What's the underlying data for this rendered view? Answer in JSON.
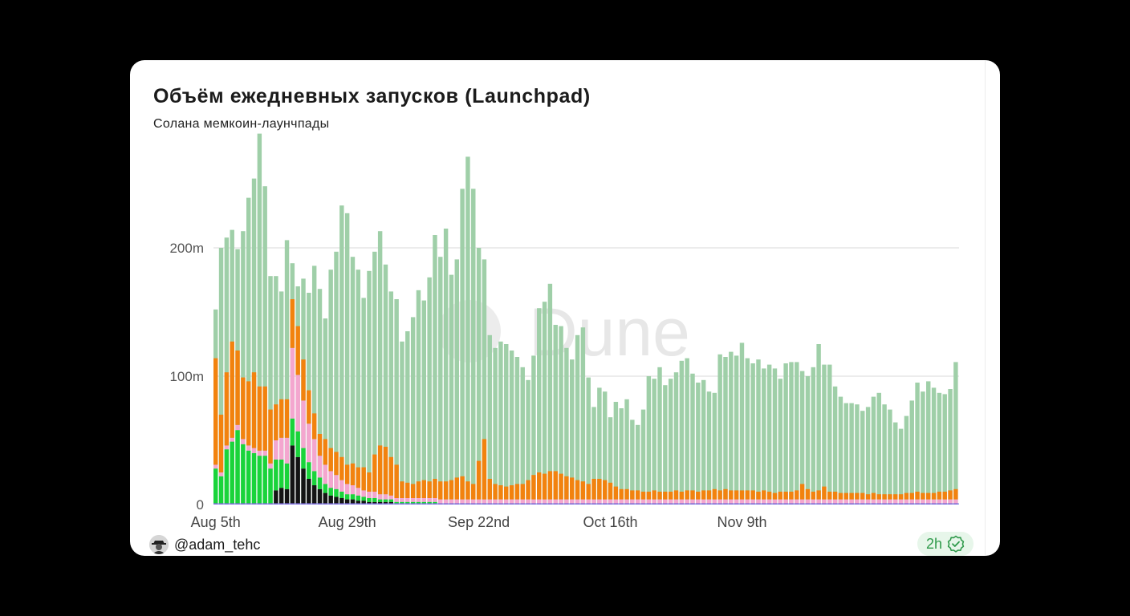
{
  "title": "Объём ежедневных запусков (Launchpad)",
  "subtitle": "Солана мемкоин-лаунчпады",
  "watermark": "Dune",
  "author": "@adam_tehc",
  "badge": "2h",
  "icons": {
    "avatar": "user-avatar",
    "verified": "verified-check-icon",
    "watermark": "dune-logo-icon"
  },
  "colors": {
    "total": "#9fcfa8",
    "orange": "#f2820e",
    "pink": "#f4a6cf",
    "green": "#19d43a",
    "black": "#141414",
    "magenta": "#e353e3",
    "blue": "#4f6dd8",
    "grid": "#e6e6e6"
  },
  "chart_data": {
    "type": "bar",
    "x_start": "Aug 5th",
    "x_ticks": [
      "Aug 5th",
      "Aug 29th",
      "Sep 22nd",
      "Oct 16th",
      "Nov 9th"
    ],
    "y_ticks": [
      "0",
      "100m",
      "200m"
    ],
    "ylim": [
      0,
      290
    ],
    "unit": "m",
    "grid": true,
    "total": [
      152,
      200,
      208,
      214,
      199,
      213,
      239,
      254,
      289,
      248,
      178,
      178,
      166,
      206,
      188,
      170,
      176,
      165,
      186,
      168,
      145,
      183,
      197,
      233,
      227,
      193,
      183,
      161,
      182,
      197,
      213,
      187,
      166,
      160,
      127,
      135,
      146,
      167,
      159,
      177,
      210,
      193,
      215,
      179,
      191,
      246,
      271,
      246,
      200,
      191,
      132,
      122,
      127,
      125,
      120,
      115,
      107,
      97,
      116,
      153,
      158,
      172,
      140,
      139,
      122,
      113,
      132,
      138,
      99,
      76,
      91,
      88,
      68,
      80,
      75,
      82,
      66,
      62,
      74,
      100,
      98,
      107,
      93,
      98,
      103,
      112,
      114,
      102,
      95,
      97,
      88,
      87,
      117,
      115,
      119,
      116,
      126,
      114,
      110,
      113,
      106,
      109,
      106,
      98,
      110,
      111,
      111,
      104,
      100,
      107,
      125,
      109,
      109,
      92,
      84,
      79,
      79,
      78,
      73,
      76,
      84,
      87,
      78,
      74,
      64,
      59,
      69,
      81,
      95,
      88,
      96,
      91,
      87,
      86,
      90,
      111
    ],
    "series": [
      {
        "values": [
          83,
          45,
          57,
          75,
          58,
          48,
          50,
          59,
          50,
          50,
          42,
          28,
          30,
          30,
          38,
          38,
          32,
          26,
          20,
          17,
          20,
          18,
          18,
          18,
          15,
          17,
          16,
          18,
          15,
          29,
          38,
          37,
          30,
          26,
          13,
          12,
          11,
          13,
          14,
          13,
          15,
          14,
          14,
          15,
          17,
          18,
          14,
          12,
          30,
          47,
          16,
          12,
          11,
          10,
          11,
          12,
          12,
          15,
          19,
          21,
          20,
          22,
          22,
          20,
          18,
          17,
          15,
          14,
          12,
          16,
          16,
          15,
          13,
          10,
          8,
          8,
          7,
          7,
          6,
          6,
          7,
          6,
          6,
          6,
          7,
          6,
          7,
          7,
          6,
          7,
          7,
          8,
          7,
          8,
          7,
          7,
          7,
          7,
          7,
          6,
          7,
          6,
          5,
          6,
          6,
          6,
          7,
          12,
          8,
          6,
          7,
          10,
          6,
          6,
          5,
          5,
          5,
          5,
          5,
          4,
          5,
          4,
          4,
          4,
          4,
          4,
          5,
          5,
          6,
          5,
          5,
          5,
          6,
          6,
          7,
          8
        ]
      },
      {
        "values": [
          27,
          21,
          42,
          48,
          57,
          46,
          41,
          39,
          37,
          37,
          27,
          24,
          22,
          20,
          21,
          20,
          16,
          13,
          11,
          9,
          7,
          6,
          6,
          5,
          4,
          4,
          4,
          3,
          3,
          3,
          2,
          2,
          2,
          1,
          1,
          1,
          1,
          1,
          1,
          1,
          1,
          0,
          0,
          0,
          0,
          0,
          0,
          0,
          0,
          0,
          0,
          0,
          0,
          0,
          0,
          0,
          0,
          0,
          0,
          0,
          0,
          0,
          0,
          0,
          0,
          0,
          0,
          0,
          0,
          0,
          0,
          0,
          0,
          0,
          0,
          0,
          0,
          0,
          0,
          0,
          0,
          0,
          0,
          0,
          0,
          0,
          0,
          0,
          0,
          0,
          0,
          0,
          0,
          0,
          0,
          0,
          0,
          0,
          0,
          0,
          0,
          0,
          0,
          0,
          0,
          0,
          0,
          0,
          0,
          0,
          0,
          0,
          0,
          0,
          0,
          0,
          0,
          0,
          0,
          0,
          0,
          0,
          0,
          0,
          0,
          0,
          0,
          0,
          0,
          0,
          0,
          0,
          0,
          0,
          0,
          0
        ]
      },
      {
        "values": [
          3,
          3,
          3,
          3,
          4,
          4,
          4,
          4,
          4,
          4,
          4,
          15,
          17,
          20,
          55,
          44,
          37,
          30,
          25,
          17,
          15,
          13,
          11,
          9,
          8,
          7,
          6,
          5,
          5,
          5,
          4,
          4,
          3,
          3,
          3,
          3,
          3,
          3,
          3,
          3,
          3,
          3,
          3,
          3,
          3,
          3,
          3,
          3,
          3,
          3,
          3,
          3,
          3,
          3,
          3,
          3,
          3,
          3,
          3,
          3,
          3,
          3,
          3,
          3,
          3,
          3,
          3,
          3,
          3,
          3,
          3,
          3,
          3,
          3,
          3,
          3,
          3,
          3,
          3,
          3,
          3,
          3,
          3,
          3,
          3,
          3,
          3,
          3,
          3,
          3,
          3,
          3,
          3,
          3,
          3,
          3,
          3,
          3,
          3,
          3,
          3,
          3,
          3,
          3,
          3,
          3,
          3,
          3,
          3,
          3,
          3,
          3,
          3,
          3,
          3,
          3,
          3,
          3,
          3,
          3,
          3,
          3,
          3,
          3,
          3,
          3,
          3,
          3,
          3,
          3,
          3,
          3,
          3,
          3,
          3,
          3
        ]
      },
      {
        "values": [
          0,
          0,
          0,
          0,
          0,
          0,
          0,
          0,
          0,
          0,
          0,
          10,
          12,
          11,
          45,
          36,
          27,
          19,
          14,
          11,
          8,
          6,
          5,
          4,
          3,
          3,
          2,
          2,
          1,
          1,
          1,
          1,
          1,
          0,
          0,
          0,
          0,
          0,
          0,
          0,
          0,
          0,
          0,
          0,
          0,
          0,
          0,
          0,
          0,
          0,
          0,
          0,
          0,
          0,
          0,
          0,
          0,
          0,
          0,
          0,
          0,
          0,
          0,
          0,
          0,
          0,
          0,
          0,
          0,
          0,
          0,
          0,
          0,
          0,
          0,
          0,
          0,
          0,
          0,
          0,
          0,
          0,
          0,
          0,
          0,
          0,
          0,
          0,
          0,
          0,
          0,
          0,
          0,
          0,
          0,
          0,
          0,
          0,
          0,
          0,
          0,
          0,
          0,
          0,
          0,
          0,
          0,
          0,
          0,
          0,
          0,
          0,
          0,
          0,
          0,
          0,
          0,
          0,
          0,
          0,
          0,
          0,
          0,
          0,
          0,
          0,
          0,
          0,
          0,
          0,
          0,
          0,
          0,
          0,
          0,
          0
        ]
      },
      {
        "values": [
          1,
          1,
          1,
          1,
          1,
          1,
          1,
          1,
          1,
          1,
          1,
          1,
          1,
          1,
          1,
          1,
          1,
          1,
          1,
          1,
          1,
          1,
          1,
          1,
          1,
          1,
          1,
          1,
          1,
          1,
          1,
          1,
          1,
          1,
          1,
          1,
          1,
          1,
          1,
          1,
          1,
          1,
          1,
          1,
          1,
          1,
          1,
          1,
          1,
          1,
          1,
          1,
          1,
          1,
          1,
          1,
          1,
          1,
          1,
          1,
          1,
          1,
          1,
          1,
          1,
          1,
          1,
          1,
          1,
          1,
          1,
          1,
          1,
          1,
          1,
          1,
          1,
          1,
          1,
          1,
          1,
          1,
          1,
          1,
          1,
          1,
          1,
          1,
          1,
          1,
          1,
          1,
          1,
          1,
          1,
          1,
          1,
          1,
          1,
          1,
          1,
          1,
          1,
          1,
          1,
          1,
          1,
          1,
          1,
          1,
          1,
          1,
          1,
          1,
          1,
          1,
          1,
          1,
          1,
          1,
          1,
          1,
          1,
          1,
          1,
          1,
          1,
          1,
          1,
          1,
          1,
          1,
          1,
          1,
          1,
          1
        ]
      }
    ]
  }
}
